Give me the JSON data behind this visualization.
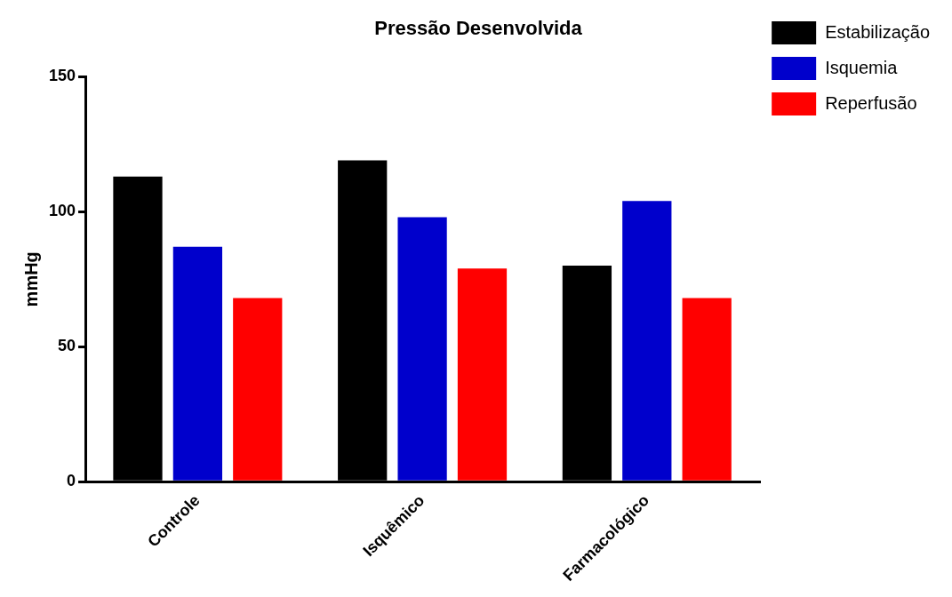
{
  "chart_data": {
    "type": "bar",
    "title": "Pressão Desenvolvida",
    "ylabel": "mmHg",
    "categories": [
      "Controle",
      "Isquêmico",
      "Farmacológico"
    ],
    "series": [
      {
        "name": "Estabilização",
        "color": "#000000",
        "values": [
          113,
          119,
          80
        ]
      },
      {
        "name": "Isquemia",
        "color": "#0000cc",
        "values": [
          87,
          98,
          104
        ]
      },
      {
        "name": "Reperfusão",
        "color": "#ff0000",
        "values": [
          68,
          79,
          68
        ]
      }
    ],
    "ylim": [
      0,
      150
    ],
    "yticks": [
      0,
      50,
      100,
      150
    ],
    "grid": false,
    "legend": "top right"
  }
}
